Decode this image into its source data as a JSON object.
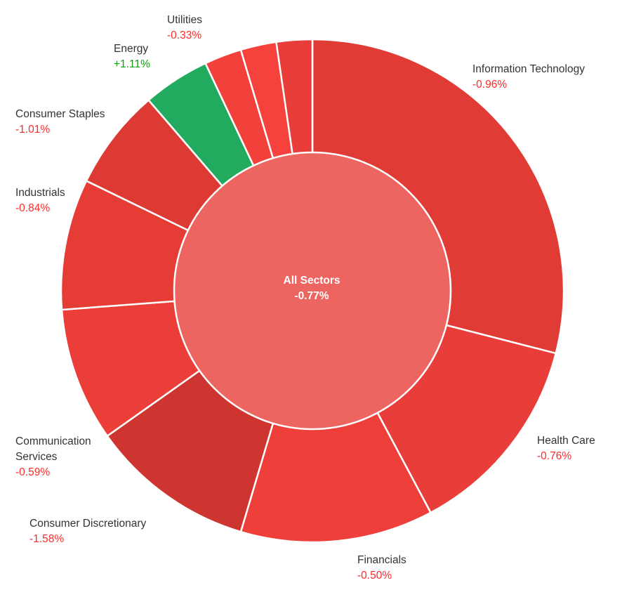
{
  "chart_data": {
    "type": "pie",
    "center": {
      "label": "All Sectors",
      "change": "-0.77%",
      "color": "#ec6561"
    },
    "slices": [
      {
        "name": "Information Technology",
        "change": "-0.96%",
        "share": 29.0,
        "color": "#e03c35"
      },
      {
        "name": "Health Care",
        "change": "-0.76%",
        "share": 13.2,
        "color": "#e83d38"
      },
      {
        "name": "Financials",
        "change": "-0.50%",
        "share": 12.4,
        "color": "#ee3f3a"
      },
      {
        "name": "Consumer Discretionary",
        "change": "-1.58%",
        "share": 10.6,
        "color": "#cf3530"
      },
      {
        "name": "Communication Services",
        "change": "-0.59%",
        "share": 8.6,
        "color": "#ec3e39"
      },
      {
        "name": "Industrials",
        "change": "-0.84%",
        "share": 8.4,
        "color": "#e53c36"
      },
      {
        "name": "Consumer Staples",
        "change": "-1.01%",
        "share": 6.5,
        "color": "#de3a34"
      },
      {
        "name": "Energy",
        "change": "+1.11%",
        "share": 4.3,
        "color": "#22aa5e"
      },
      {
        "name": "",
        "change": "",
        "share": 2.4,
        "color": "#f2403b"
      },
      {
        "name": "",
        "change": "",
        "share": 2.3,
        "color": "#f5423d"
      },
      {
        "name": "Utilities",
        "change": "-0.33%",
        "share": 2.3,
        "color": "#e83d38"
      }
    ],
    "negative_color": "#ff2a2a",
    "positive_color": "#0f9e0f"
  }
}
